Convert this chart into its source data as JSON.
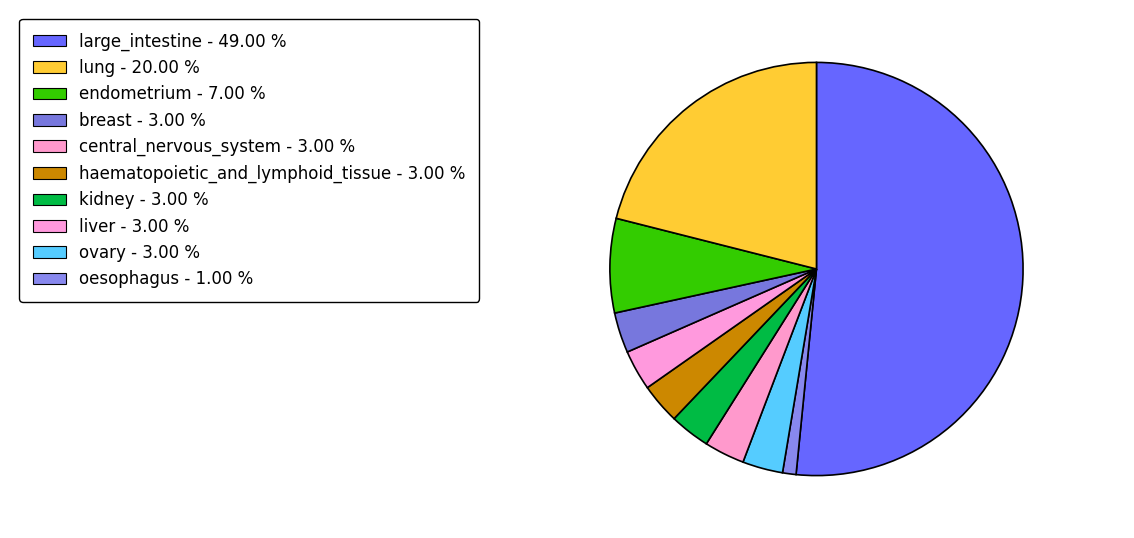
{
  "labels": [
    "large_intestine - 49.00 %",
    "lung - 20.00 %",
    "endometrium - 7.00 %",
    "breast - 3.00 %",
    "central_nervous_system - 3.00 %",
    "haematopoietic_and_lymphoid_tissue - 3.00 %",
    "kidney - 3.00 %",
    "liver - 3.00 %",
    "ovary - 3.00 %",
    "oesophagus - 1.00 %"
  ],
  "values": [
    49,
    20,
    7,
    3,
    3,
    3,
    3,
    3,
    3,
    1
  ],
  "colors": [
    "#6666ff",
    "#ffcc33",
    "#33cc00",
    "#7777dd",
    "#ff99cc",
    "#cc8800",
    "#00bb44",
    "#ff99dd",
    "#55ccff",
    "#8888ee"
  ],
  "pie_order": [
    0,
    8,
    4,
    6,
    5,
    7,
    3,
    2,
    1,
    9
  ],
  "edge_color": "black",
  "edge_width": 1.2,
  "background_color": "#ffffff",
  "startangle": 90,
  "legend_fontsize": 12
}
